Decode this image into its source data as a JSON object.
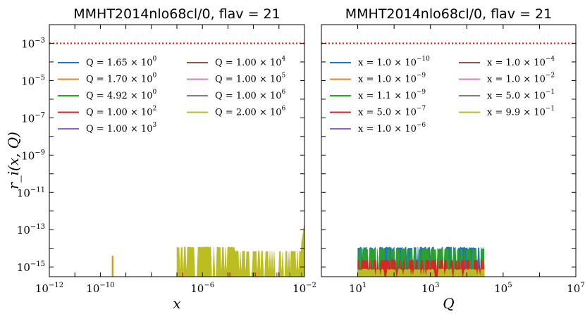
{
  "chart_data": [
    {
      "type": "line",
      "title": "MMHT2014nlo68cl/0, flav = 21",
      "xlabel": "x",
      "ylabel": "r_i(x, Q)",
      "xscale": "log",
      "yscale": "log",
      "xlim": [
        1e-12,
        0.01
      ],
      "ylim": [
        3e-16,
        0.01
      ],
      "xticks": [
        {
          "mant": "10",
          "exp": "−12"
        },
        {
          "mant": "10",
          "exp": "−10"
        },
        {
          "mant": "10",
          "exp": "−6"
        },
        {
          "mant": "10",
          "exp": "−2"
        }
      ],
      "yticks": [
        {
          "mant": "10",
          "exp": "−15"
        },
        {
          "mant": "10",
          "exp": "−13"
        },
        {
          "mant": "10",
          "exp": "−11"
        },
        {
          "mant": "10",
          "exp": "−9"
        },
        {
          "mant": "10",
          "exp": "−7"
        },
        {
          "mant": "10",
          "exp": "−5"
        },
        {
          "mant": "10",
          "exp": "−3"
        }
      ],
      "threshold": {
        "value": 0.001,
        "color": "#ff0000",
        "style": "dotted"
      },
      "series": [
        {
          "var": "Q",
          "mant": "1.65",
          "exp": "0",
          "color": "#1f77b4"
        },
        {
          "var": "Q",
          "mant": "1.70",
          "exp": "0",
          "color": "#ff7f0e"
        },
        {
          "var": "Q",
          "mant": "4.92",
          "exp": "0",
          "color": "#2ca02c"
        },
        {
          "var": "Q",
          "mant": "1.00",
          "exp": "2",
          "color": "#d62728"
        },
        {
          "var": "Q",
          "mant": "1.00",
          "exp": "3",
          "color": "#9467bd"
        },
        {
          "var": "Q",
          "mant": "1.00",
          "exp": "4",
          "color": "#8c564b"
        },
        {
          "var": "Q",
          "mant": "1.00",
          "exp": "5",
          "color": "#e377c2"
        },
        {
          "var": "Q",
          "mant": "1.00",
          "exp": "6",
          "color": "#7f7f7f"
        },
        {
          "var": "Q",
          "mant": "2.00",
          "exp": "6",
          "color": "#bcbd22"
        }
      ],
      "noise_summary": {
        "spike_at_x": 3e-10,
        "spike_value": 4e-15,
        "band_x_range": [
          1e-07,
          0.01
        ],
        "band_max": 1.2e-14,
        "band_dip_to": 7e-15,
        "endpoint_x": 0.01,
        "endpoint_value": 2e-13,
        "floor": 3e-16
      }
    },
    {
      "type": "line",
      "title": "MMHT2014nlo68cl/0, flav = 21",
      "xlabel": "Q",
      "ylabel": "",
      "xscale": "log",
      "yscale": "log",
      "xlim": [
        1,
        10000000.0
      ],
      "ylim": [
        3e-16,
        0.01
      ],
      "xticks": [
        {
          "mant": "10",
          "exp": "1"
        },
        {
          "mant": "10",
          "exp": "3"
        },
        {
          "mant": "10",
          "exp": "5"
        },
        {
          "mant": "10",
          "exp": "7"
        }
      ],
      "threshold": {
        "value": 0.001,
        "color": "#ff0000",
        "style": "dotted"
      },
      "series": [
        {
          "var": "x",
          "mant": "1.0",
          "exp": "−10",
          "color": "#1f77b4"
        },
        {
          "var": "x",
          "mant": "1.0",
          "exp": "−9",
          "color": "#ff7f0e"
        },
        {
          "var": "x",
          "mant": "1.1",
          "exp": "−9",
          "color": "#2ca02c"
        },
        {
          "var": "x",
          "mant": "5.0",
          "exp": "−7",
          "color": "#d62728"
        },
        {
          "var": "x",
          "mant": "1.0",
          "exp": "−6",
          "color": "#9467bd"
        },
        {
          "var": "x",
          "mant": "1.0",
          "exp": "−4",
          "color": "#8c564b"
        },
        {
          "var": "x",
          "mant": "1.0",
          "exp": "−2",
          "color": "#e377c2"
        },
        {
          "var": "x",
          "mant": "5.0",
          "exp": "−1",
          "color": "#7f7f7f"
        },
        {
          "var": "x",
          "mant": "9.9",
          "exp": "−1",
          "color": "#bcbd22"
        }
      ],
      "noise_summary": {
        "band_x_range": [
          10,
          30000
        ],
        "levels": [
          {
            "color": "#1f77b4",
            "max": 1.2e-14
          },
          {
            "color": "#2ca02c",
            "max": 1e-14
          },
          {
            "color": "#d62728",
            "max": 2.5e-15
          },
          {
            "color": "#bcbd22",
            "max": 8e-16
          }
        ],
        "floor": 3e-16
      }
    }
  ]
}
